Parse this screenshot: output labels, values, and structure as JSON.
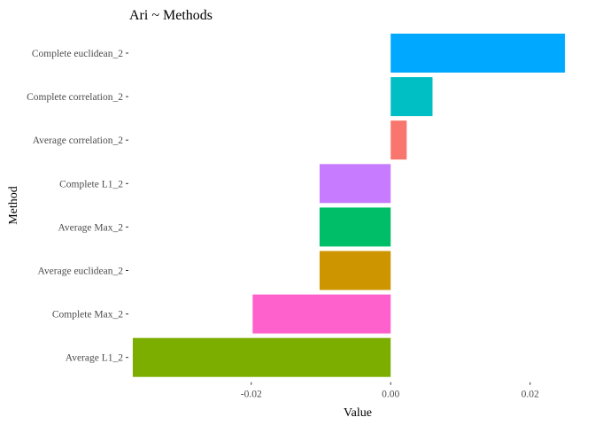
{
  "chart_data": {
    "type": "bar",
    "orientation": "horizontal",
    "title": "Ari ~ Methods",
    "xlabel": "Value",
    "ylabel": "Method",
    "xlim": [
      -0.0375,
      0.0255
    ],
    "xticks": [
      -0.02,
      0.0,
      0.02
    ],
    "xtick_labels": [
      "-0.02",
      "0.00",
      "0.02"
    ],
    "grid": false,
    "legend": "none",
    "categories": [
      "Complete euclidean_2",
      "Complete correlation_2",
      "Average correlation_2",
      "Complete L1_2",
      "Average Max_2",
      "Average euclidean_2",
      "Complete Max_2",
      "Average L1_2"
    ],
    "values": [
      0.025,
      0.006,
      0.0023,
      -0.0102,
      -0.0102,
      -0.0102,
      -0.0198,
      -0.037
    ],
    "colors": [
      "#00a9ff",
      "#00bfc4",
      "#f8766d",
      "#c77cff",
      "#00be67",
      "#cd9600",
      "#ff61cc",
      "#7cae00"
    ]
  }
}
